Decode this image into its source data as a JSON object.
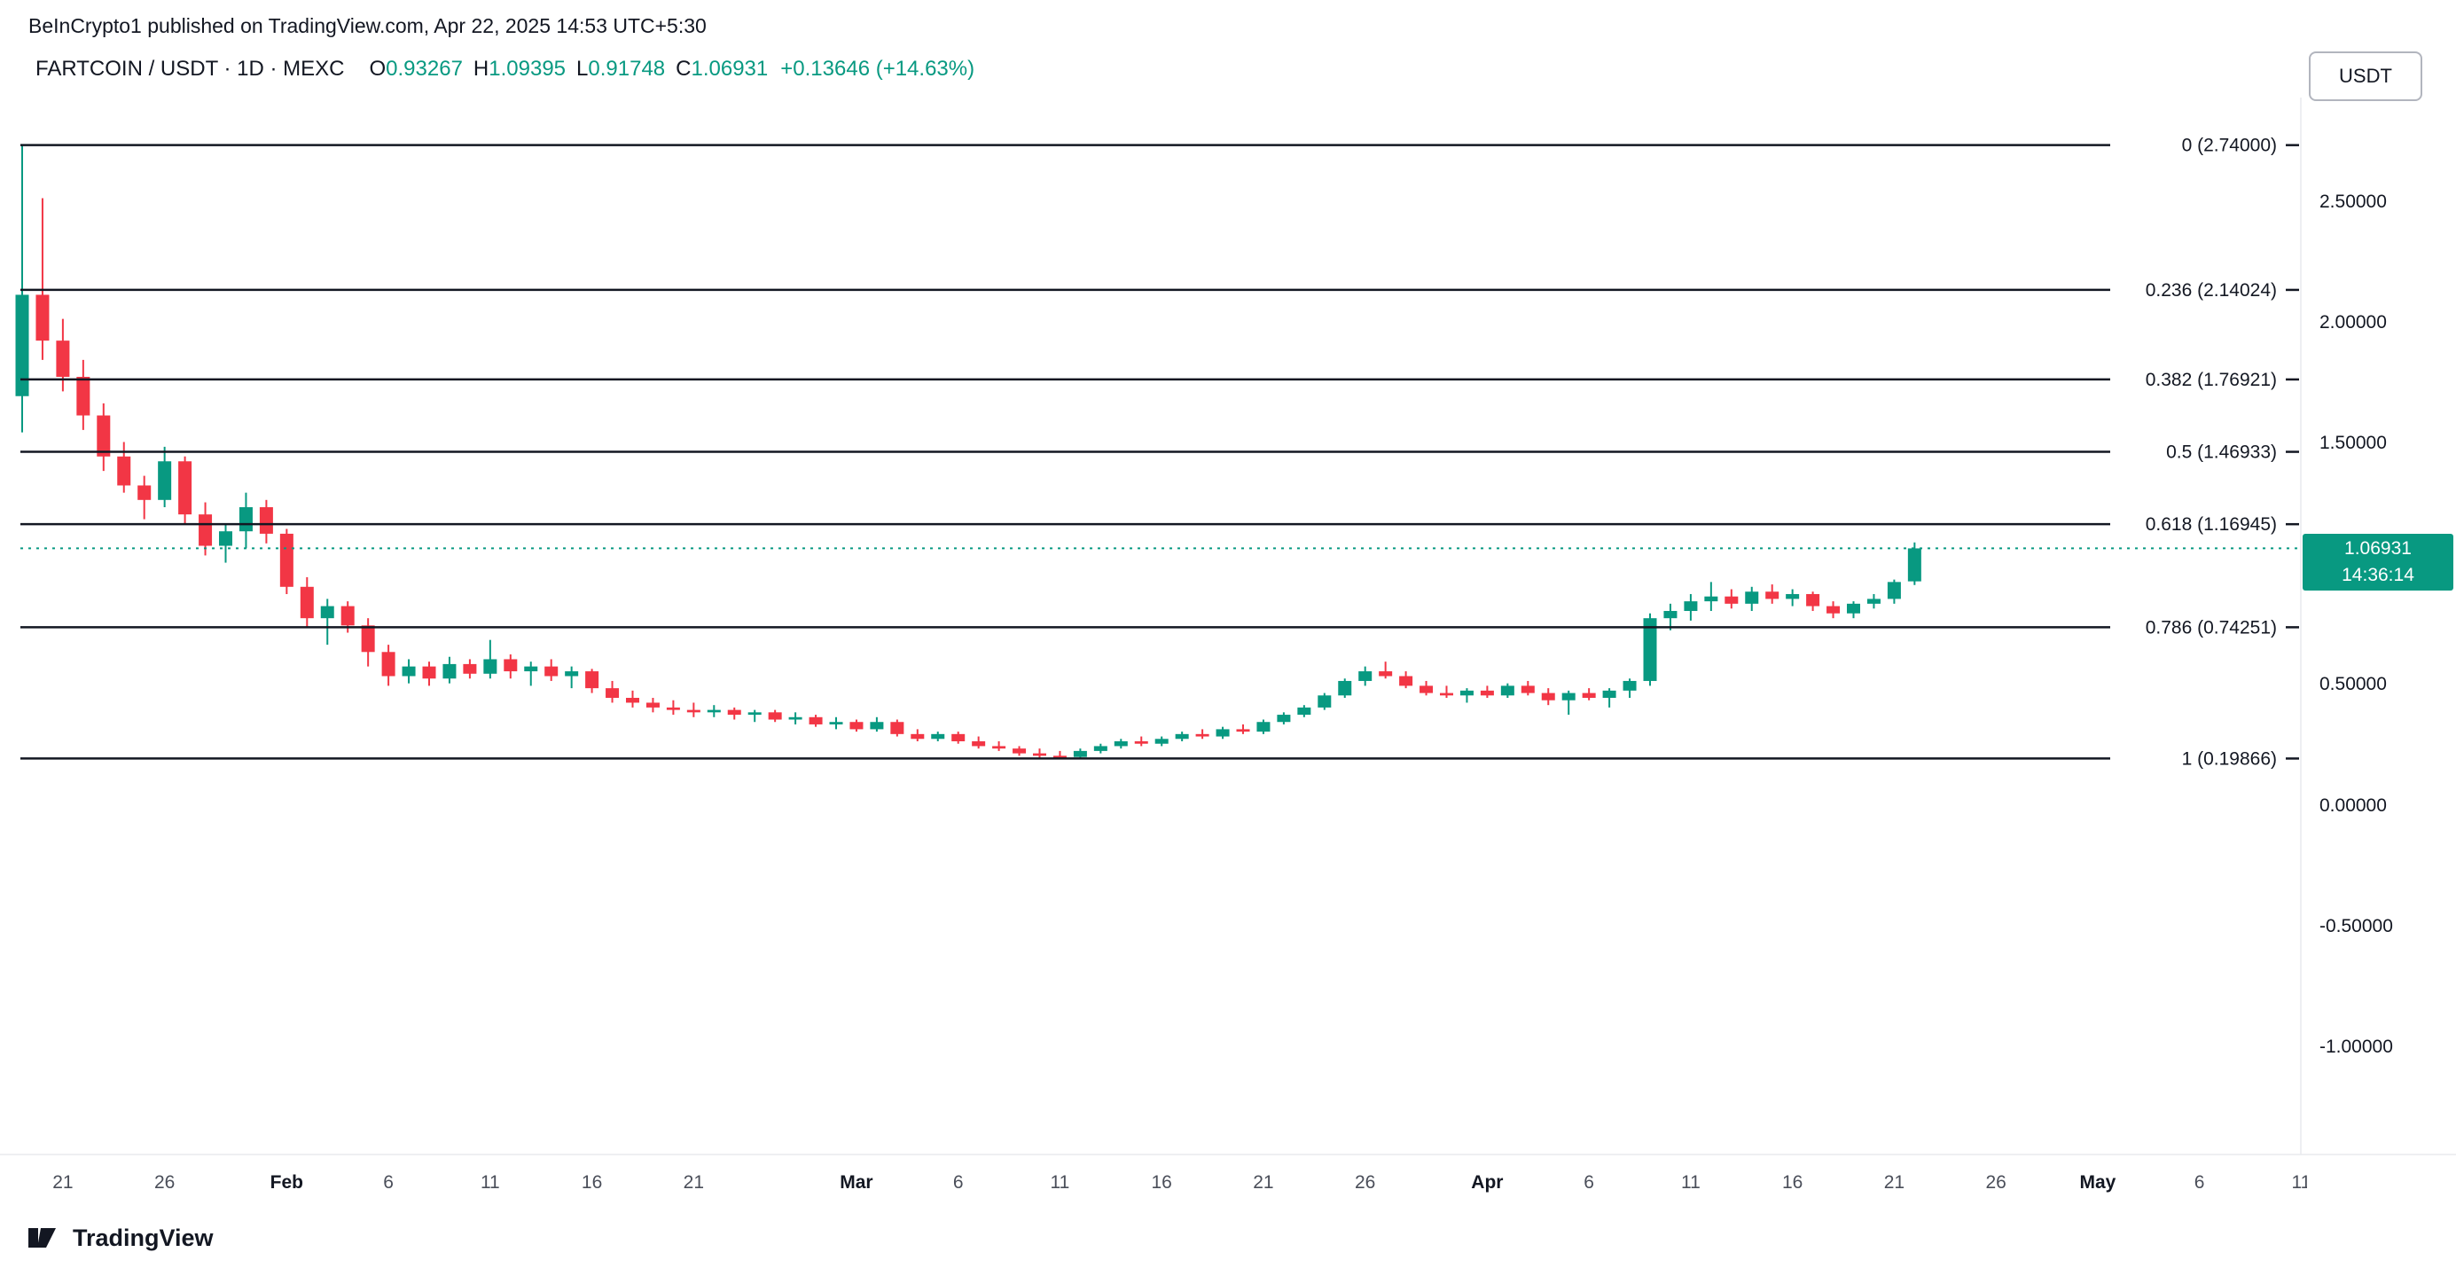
{
  "header": {
    "attribution": "BeInCrypto1 published on TradingView.com, Apr 22, 2025 14:53 UTC+5:30"
  },
  "legend": {
    "symbol": "FARTCOIN / USDT · 1D · MEXC",
    "ohlc": [
      {
        "label": "O",
        "value": "0.93267"
      },
      {
        "label": "H",
        "value": "1.09395"
      },
      {
        "label": "L",
        "value": "0.91748"
      },
      {
        "label": "C",
        "value": "1.06931"
      }
    ],
    "change": "+0.13646 (+14.63%)"
  },
  "price_scale": {
    "currency_button": "USDT",
    "labels": [
      "2.50000",
      "2.00000",
      "1.50000",
      "1.00000",
      "0.50000",
      "0.00000",
      "-0.50000",
      "-1.00000"
    ],
    "values": [
      2.5,
      2.0,
      1.5,
      1.0,
      0.5,
      0.0,
      -0.5,
      -1.0
    ],
    "last_price_label": {
      "price": "1.06931",
      "countdown": "14:36:14"
    }
  },
  "footer": {
    "brand": "TradingView"
  },
  "colors": {
    "up": "#089981",
    "down": "#F23645",
    "fib_line": "#131722",
    "text": "#131722",
    "muted": "#4A4E59",
    "label_bg": "#089981",
    "separator": "#E8EAEE"
  },
  "chart_data": {
    "type": "candlestick",
    "title": "FARTCOIN / USDT · 1D · MEXC",
    "interval": "1D",
    "start_date": "2025-01-19",
    "current_price": 1.06931,
    "y_axis_range": [
      -1.35,
      2.95
    ],
    "grid": false,
    "fib_levels": [
      {
        "ratio": "0",
        "price": 2.74,
        "label": "0 (2.74000)"
      },
      {
        "ratio": "0.236",
        "price": 2.14024,
        "label": "0.236 (2.14024)"
      },
      {
        "ratio": "0.382",
        "price": 1.76921,
        "label": "0.382 (1.76921)"
      },
      {
        "ratio": "0.5",
        "price": 1.46933,
        "label": "0.5 (1.46933)"
      },
      {
        "ratio": "0.618",
        "price": 1.16945,
        "label": "0.618 (1.16945)"
      },
      {
        "ratio": "0.786",
        "price": 0.74251,
        "label": "0.786 (0.74251)"
      },
      {
        "ratio": "1",
        "price": 0.19866,
        "label": "1 (0.19866)"
      }
    ],
    "x_ticks": [
      {
        "label": "21",
        "index": 2,
        "month": false
      },
      {
        "label": "26",
        "index": 7,
        "month": false
      },
      {
        "label": "Feb",
        "index": 13,
        "month": true
      },
      {
        "label": "6",
        "index": 18,
        "month": false
      },
      {
        "label": "11",
        "index": 23,
        "month": false
      },
      {
        "label": "16",
        "index": 28,
        "month": false
      },
      {
        "label": "21",
        "index": 33,
        "month": false
      },
      {
        "label": "Mar",
        "index": 41,
        "month": true
      },
      {
        "label": "6",
        "index": 46,
        "month": false
      },
      {
        "label": "11",
        "index": 51,
        "month": false
      },
      {
        "label": "16",
        "index": 56,
        "month": false
      },
      {
        "label": "21",
        "index": 61,
        "month": false
      },
      {
        "label": "26",
        "index": 66,
        "month": false
      },
      {
        "label": "Apr",
        "index": 72,
        "month": true
      },
      {
        "label": "6",
        "index": 77,
        "month": false
      },
      {
        "label": "11",
        "index": 82,
        "month": false
      },
      {
        "label": "16",
        "index": 87,
        "month": false
      },
      {
        "label": "21",
        "index": 92,
        "month": false
      },
      {
        "label": "26",
        "index": 97,
        "month": false
      },
      {
        "label": "May",
        "index": 102,
        "month": true
      },
      {
        "label": "6",
        "index": 107,
        "month": false
      },
      {
        "label": "11",
        "index": 112,
        "month": false
      }
    ],
    "candles": [
      [
        1.7,
        2.74,
        1.55,
        2.12
      ],
      [
        2.12,
        2.52,
        1.85,
        1.93
      ],
      [
        1.93,
        2.02,
        1.72,
        1.78
      ],
      [
        1.78,
        1.85,
        1.56,
        1.62
      ],
      [
        1.62,
        1.67,
        1.39,
        1.45
      ],
      [
        1.45,
        1.51,
        1.3,
        1.33
      ],
      [
        1.33,
        1.37,
        1.19,
        1.27
      ],
      [
        1.27,
        1.49,
        1.24,
        1.43
      ],
      [
        1.43,
        1.45,
        1.17,
        1.21
      ],
      [
        1.21,
        1.26,
        1.04,
        1.08
      ],
      [
        1.08,
        1.17,
        1.01,
        1.14
      ],
      [
        1.14,
        1.3,
        1.07,
        1.24
      ],
      [
        1.24,
        1.27,
        1.09,
        1.13
      ],
      [
        1.13,
        1.15,
        0.88,
        0.91
      ],
      [
        0.91,
        0.95,
        0.74,
        0.78
      ],
      [
        0.78,
        0.86,
        0.67,
        0.83
      ],
      [
        0.83,
        0.85,
        0.72,
        0.75
      ],
      [
        0.75,
        0.78,
        0.58,
        0.64
      ],
      [
        0.64,
        0.67,
        0.5,
        0.54
      ],
      [
        0.54,
        0.61,
        0.51,
        0.58
      ],
      [
        0.58,
        0.6,
        0.5,
        0.53
      ],
      [
        0.53,
        0.62,
        0.51,
        0.59
      ],
      [
        0.59,
        0.61,
        0.53,
        0.55
      ],
      [
        0.55,
        0.69,
        0.53,
        0.61
      ],
      [
        0.61,
        0.63,
        0.53,
        0.56
      ],
      [
        0.56,
        0.6,
        0.5,
        0.58
      ],
      [
        0.58,
        0.61,
        0.52,
        0.54
      ],
      [
        0.54,
        0.58,
        0.49,
        0.56
      ],
      [
        0.56,
        0.57,
        0.47,
        0.49
      ],
      [
        0.49,
        0.52,
        0.43,
        0.45
      ],
      [
        0.45,
        0.48,
        0.41,
        0.43
      ],
      [
        0.43,
        0.45,
        0.39,
        0.41
      ],
      [
        0.41,
        0.44,
        0.38,
        0.4
      ],
      [
        0.4,
        0.43,
        0.37,
        0.39
      ],
      [
        0.39,
        0.42,
        0.37,
        0.4
      ],
      [
        0.4,
        0.41,
        0.36,
        0.38
      ],
      [
        0.38,
        0.4,
        0.35,
        0.39
      ],
      [
        0.39,
        0.4,
        0.35,
        0.36
      ],
      [
        0.36,
        0.39,
        0.34,
        0.37
      ],
      [
        0.37,
        0.38,
        0.33,
        0.34
      ],
      [
        0.34,
        0.37,
        0.32,
        0.35
      ],
      [
        0.35,
        0.36,
        0.31,
        0.32
      ],
      [
        0.32,
        0.37,
        0.31,
        0.35
      ],
      [
        0.35,
        0.36,
        0.29,
        0.3
      ],
      [
        0.3,
        0.32,
        0.27,
        0.28
      ],
      [
        0.28,
        0.31,
        0.27,
        0.3
      ],
      [
        0.3,
        0.31,
        0.26,
        0.27
      ],
      [
        0.27,
        0.29,
        0.24,
        0.25
      ],
      [
        0.25,
        0.27,
        0.23,
        0.24
      ],
      [
        0.24,
        0.25,
        0.21,
        0.22
      ],
      [
        0.22,
        0.24,
        0.2,
        0.21
      ],
      [
        0.21,
        0.23,
        0.19866,
        0.205
      ],
      [
        0.205,
        0.24,
        0.2,
        0.23
      ],
      [
        0.23,
        0.26,
        0.22,
        0.25
      ],
      [
        0.25,
        0.28,
        0.24,
        0.27
      ],
      [
        0.27,
        0.29,
        0.25,
        0.26
      ],
      [
        0.26,
        0.29,
        0.25,
        0.28
      ],
      [
        0.28,
        0.31,
        0.27,
        0.3
      ],
      [
        0.3,
        0.32,
        0.28,
        0.29
      ],
      [
        0.29,
        0.33,
        0.28,
        0.32
      ],
      [
        0.32,
        0.34,
        0.3,
        0.31
      ],
      [
        0.31,
        0.36,
        0.3,
        0.35
      ],
      [
        0.35,
        0.39,
        0.34,
        0.38
      ],
      [
        0.38,
        0.42,
        0.37,
        0.41
      ],
      [
        0.41,
        0.47,
        0.4,
        0.46
      ],
      [
        0.46,
        0.53,
        0.45,
        0.52
      ],
      [
        0.52,
        0.58,
        0.5,
        0.56
      ],
      [
        0.56,
        0.6,
        0.53,
        0.54
      ],
      [
        0.54,
        0.56,
        0.49,
        0.5
      ],
      [
        0.5,
        0.52,
        0.46,
        0.47
      ],
      [
        0.47,
        0.5,
        0.45,
        0.46
      ],
      [
        0.46,
        0.49,
        0.43,
        0.48
      ],
      [
        0.48,
        0.5,
        0.45,
        0.46
      ],
      [
        0.46,
        0.51,
        0.45,
        0.5
      ],
      [
        0.5,
        0.52,
        0.46,
        0.47
      ],
      [
        0.47,
        0.49,
        0.42,
        0.44
      ],
      [
        0.44,
        0.48,
        0.38,
        0.47
      ],
      [
        0.47,
        0.49,
        0.44,
        0.45
      ],
      [
        0.45,
        0.49,
        0.41,
        0.48
      ],
      [
        0.48,
        0.53,
        0.45,
        0.52
      ],
      [
        0.52,
        0.8,
        0.5,
        0.78
      ],
      [
        0.78,
        0.84,
        0.73,
        0.81
      ],
      [
        0.81,
        0.88,
        0.77,
        0.85
      ],
      [
        0.85,
        0.93,
        0.81,
        0.87
      ],
      [
        0.87,
        0.9,
        0.82,
        0.84
      ],
      [
        0.84,
        0.91,
        0.81,
        0.89
      ],
      [
        0.89,
        0.92,
        0.84,
        0.86
      ],
      [
        0.86,
        0.9,
        0.83,
        0.88
      ],
      [
        0.88,
        0.89,
        0.81,
        0.83
      ],
      [
        0.83,
        0.85,
        0.78,
        0.8
      ],
      [
        0.8,
        0.85,
        0.78,
        0.84
      ],
      [
        0.84,
        0.88,
        0.82,
        0.86
      ],
      [
        0.86,
        0.94,
        0.84,
        0.93
      ],
      [
        0.93267,
        1.09395,
        0.91748,
        1.06931
      ]
    ]
  }
}
